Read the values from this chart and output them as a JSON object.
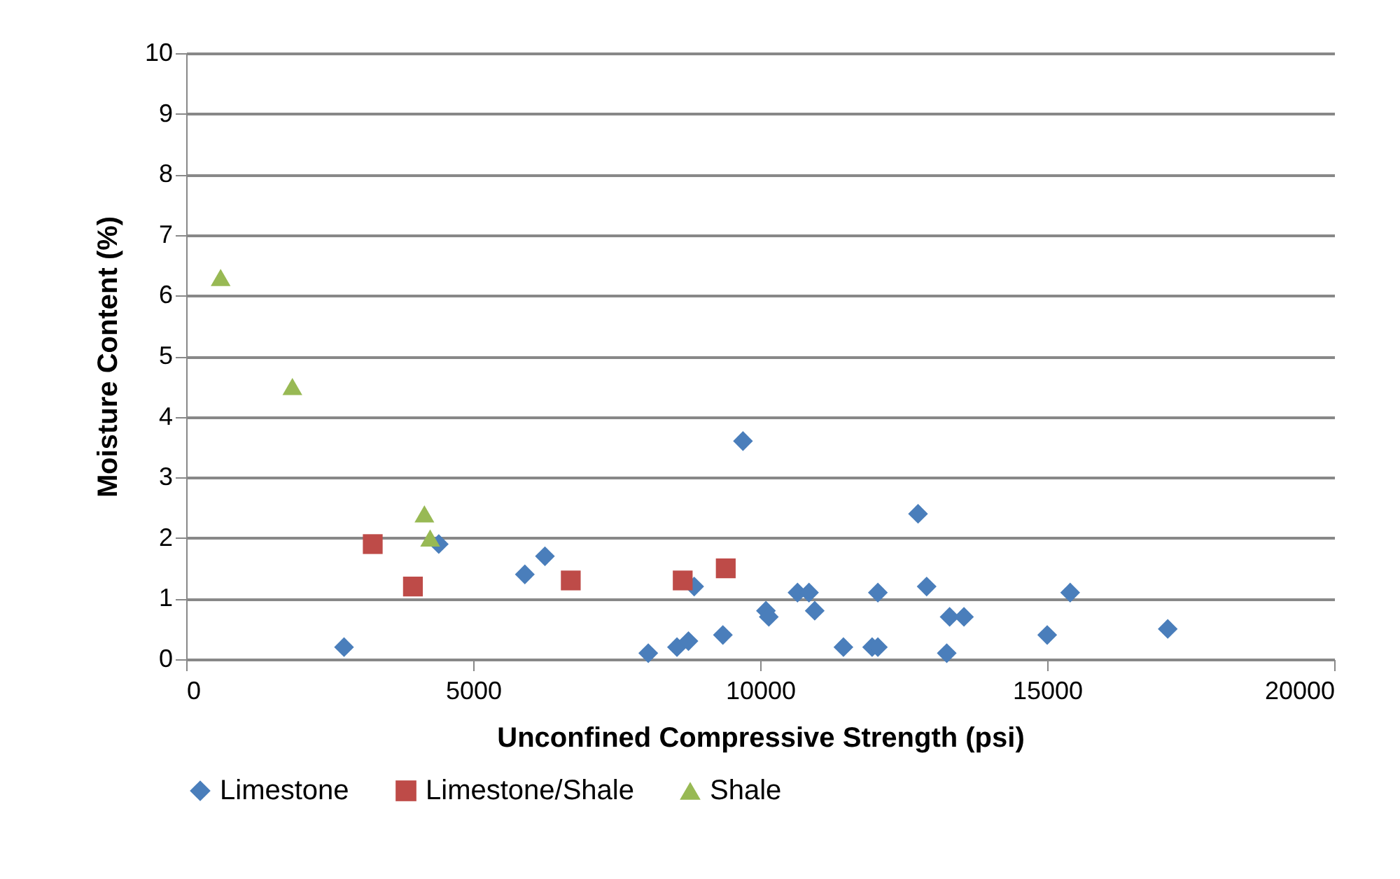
{
  "chart_data": {
    "type": "scatter",
    "xlabel": "Unconfined Compressive Strength (psi)",
    "ylabel": "Moisture Content (%)",
    "xlim": [
      0,
      20000
    ],
    "xticks": [
      0,
      5000,
      10000,
      15000,
      20000
    ],
    "ylim": [
      0,
      10
    ],
    "yticks": [
      0,
      1,
      2,
      3,
      4,
      5,
      6,
      7,
      8,
      9,
      10
    ],
    "grid": "y",
    "legend": "bottom",
    "series": [
      {
        "name": "Limestone",
        "color": "#4a7ebb",
        "marker": "diamond",
        "x": [
          2750,
          4400,
          5900,
          6250,
          8050,
          8550,
          8750,
          8850,
          9350,
          9700,
          10100,
          10150,
          10650,
          10850,
          10950,
          11450,
          11950,
          12050,
          12050,
          12750,
          12900,
          13250,
          13300,
          13550,
          15000,
          15400,
          17100
        ],
        "values": [
          0.2,
          1.9,
          1.4,
          1.7,
          0.1,
          0.2,
          0.3,
          1.2,
          0.4,
          3.6,
          0.8,
          0.7,
          1.1,
          1.1,
          0.8,
          0.2,
          0.2,
          0.2,
          1.1,
          2.4,
          1.2,
          0.1,
          0.7,
          0.7,
          0.4,
          1.1,
          0.5
        ]
      },
      {
        "name": "Limestone/Shale",
        "color": "#be4b48",
        "marker": "square",
        "x": [
          3250,
          3950,
          6700,
          8650,
          9400
        ],
        "values": [
          1.9,
          1.2,
          1.3,
          1.3,
          1.5
        ]
      },
      {
        "name": "Shale",
        "color": "#98b954",
        "marker": "triangle",
        "x": [
          600,
          1850,
          4150,
          4250
        ],
        "values": [
          6.3,
          4.5,
          2.4,
          2.0
        ]
      }
    ]
  }
}
